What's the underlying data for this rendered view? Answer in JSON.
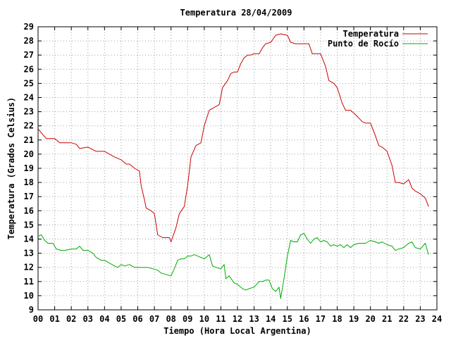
{
  "chart_data": {
    "type": "line",
    "title": "Temperatura 28/04/2009",
    "xlabel": "Tiempo (Hora Local Argentina)",
    "ylabel": "Temperatura (Grados Celsius)",
    "xlim": [
      0,
      24
    ],
    "ylim": [
      9,
      29
    ],
    "x_ticks": [
      "00",
      "01",
      "02",
      "03",
      "04",
      "05",
      "06",
      "07",
      "08",
      "09",
      "10",
      "11",
      "12",
      "13",
      "14",
      "15",
      "16",
      "17",
      "18",
      "19",
      "20",
      "21",
      "22",
      "23",
      "24"
    ],
    "y_ticks": [
      9,
      10,
      11,
      12,
      13,
      14,
      15,
      16,
      17,
      18,
      19,
      20,
      21,
      22,
      23,
      24,
      25,
      26,
      27,
      28,
      29
    ],
    "grid": true,
    "legend_position": "top-right",
    "series": [
      {
        "name": "Temperatura",
        "color": "#cc0000",
        "x": [
          0,
          0.2,
          0.5,
          1.0,
          1.3,
          2.0,
          2.3,
          2.5,
          3.0,
          3.5,
          4.0,
          4.3,
          4.6,
          5.0,
          5.3,
          5.5,
          5.8,
          6.1,
          6.2,
          6.4,
          6.5,
          6.8,
          7.0,
          7.2,
          7.5,
          7.9,
          8.0,
          8.3,
          8.5,
          8.8,
          9.0,
          9.2,
          9.5,
          9.8,
          10.0,
          10.3,
          10.6,
          10.9,
          11.1,
          11.4,
          11.6,
          11.8,
          12.0,
          12.2,
          12.4,
          12.6,
          12.8,
          13.0,
          13.3,
          13.5,
          13.7,
          14.0,
          14.3,
          14.6,
          15.0,
          15.2,
          15.5,
          15.8,
          16.0,
          16.3,
          16.5,
          16.8,
          17.0,
          17.3,
          17.5,
          17.8,
          18.0,
          18.3,
          18.5,
          18.8,
          19.1,
          19.5,
          19.7,
          20.0,
          20.3,
          20.5,
          20.7,
          21.0,
          21.3,
          21.5,
          21.7,
          22.0,
          22.3,
          22.5,
          22.7,
          23.0,
          23.3,
          23.5
        ],
        "values": [
          21.8,
          21.5,
          21.1,
          21.1,
          20.8,
          20.8,
          20.7,
          20.4,
          20.5,
          20.2,
          20.2,
          20.0,
          19.8,
          19.6,
          19.3,
          19.3,
          19.0,
          18.8,
          17.8,
          16.8,
          16.2,
          16.0,
          15.8,
          14.3,
          14.1,
          14.1,
          13.8,
          14.8,
          15.8,
          16.3,
          17.8,
          19.8,
          20.6,
          20.8,
          22.0,
          23.1,
          23.3,
          23.5,
          24.7,
          25.2,
          25.7,
          25.8,
          25.8,
          26.4,
          26.8,
          27.0,
          27.0,
          27.1,
          27.1,
          27.5,
          27.8,
          27.9,
          28.4,
          28.5,
          28.4,
          27.9,
          27.8,
          27.8,
          27.8,
          27.8,
          27.1,
          27.1,
          27.1,
          26.2,
          25.2,
          25.0,
          24.7,
          23.6,
          23.1,
          23.1,
          22.8,
          22.3,
          22.2,
          22.2,
          21.3,
          20.6,
          20.5,
          20.2,
          19.2,
          18.0,
          18.0,
          17.9,
          18.2,
          17.6,
          17.4,
          17.2,
          16.9,
          16.3
        ]
      },
      {
        "name": "Punto de Rocío",
        "color": "#00aa00",
        "x": [
          0,
          0.2,
          0.4,
          0.6,
          0.9,
          1.1,
          1.4,
          1.6,
          2.0,
          2.3,
          2.5,
          2.7,
          3.0,
          3.3,
          3.5,
          3.8,
          4.0,
          4.3,
          4.6,
          4.8,
          5.0,
          5.2,
          5.5,
          5.8,
          6.0,
          6.3,
          6.6,
          6.9,
          7.2,
          7.4,
          7.7,
          8.0,
          8.2,
          8.4,
          8.6,
          8.8,
          9.0,
          9.2,
          9.4,
          9.6,
          9.8,
          10.0,
          10.3,
          10.5,
          10.7,
          11.0,
          11.2,
          11.3,
          11.5,
          11.8,
          12.0,
          12.3,
          12.5,
          12.7,
          13.0,
          13.3,
          13.5,
          13.7,
          13.9,
          14.1,
          14.3,
          14.5,
          14.6,
          14.8,
          15.0,
          15.2,
          15.4,
          15.6,
          15.8,
          16.0,
          16.2,
          16.4,
          16.6,
          16.8,
          17.0,
          17.2,
          17.4,
          17.6,
          17.8,
          18.0,
          18.2,
          18.4,
          18.6,
          18.8,
          19.0,
          19.3,
          19.5,
          19.7,
          20.0,
          20.3,
          20.5,
          20.7,
          21.0,
          21.3,
          21.5,
          21.7,
          22.0,
          22.3,
          22.5,
          22.7,
          23.0,
          23.3,
          23.5
        ],
        "values": [
          14.2,
          14.3,
          13.9,
          13.7,
          13.7,
          13.3,
          13.2,
          13.2,
          13.3,
          13.3,
          13.5,
          13.2,
          13.2,
          13.0,
          12.7,
          12.5,
          12.5,
          12.3,
          12.1,
          12.0,
          12.2,
          12.1,
          12.2,
          12.0,
          12.0,
          12.0,
          12.0,
          11.9,
          11.8,
          11.6,
          11.5,
          11.4,
          11.9,
          12.5,
          12.6,
          12.6,
          12.8,
          12.8,
          12.9,
          12.8,
          12.7,
          12.6,
          12.9,
          12.1,
          12.0,
          11.9,
          12.2,
          11.2,
          11.4,
          10.9,
          10.8,
          10.5,
          10.4,
          10.5,
          10.6,
          11.0,
          11.0,
          11.1,
          11.1,
          10.5,
          10.3,
          10.6,
          9.8,
          11.2,
          12.8,
          13.9,
          13.8,
          13.8,
          14.3,
          14.4,
          14.0,
          13.7,
          14.0,
          14.1,
          13.8,
          13.9,
          13.8,
          13.5,
          13.6,
          13.5,
          13.6,
          13.4,
          13.6,
          13.4,
          13.6,
          13.7,
          13.7,
          13.7,
          13.9,
          13.8,
          13.7,
          13.8,
          13.6,
          13.5,
          13.2,
          13.3,
          13.4,
          13.7,
          13.8,
          13.4,
          13.3,
          13.7,
          12.9
        ]
      }
    ]
  }
}
